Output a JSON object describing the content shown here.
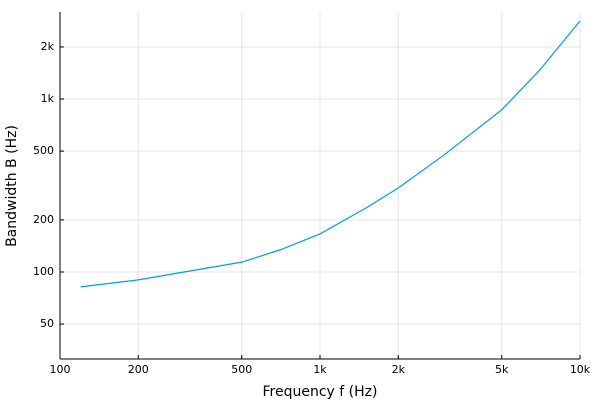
{
  "chart_data": {
    "type": "line",
    "xlabel": "Frequency f (Hz)",
    "ylabel": "Bandwidth B (Hz)",
    "x": [
      120,
      200,
      300,
      500,
      700,
      1000,
      1500,
      2000,
      3000,
      5000,
      7000,
      10000
    ],
    "series": [
      {
        "color": "#009af9",
        "values": [
          82,
          90,
          100,
          114,
          134,
          166,
          234,
          306,
          475,
          866,
          1470,
          2826
        ]
      }
    ],
    "xlim": [
      100,
      10000
    ],
    "ylim": [
      31.4,
      3185
    ],
    "xlog": true,
    "ylog": true,
    "grid": true,
    "xticks": [
      100,
      200,
      500,
      {
        "value": 1000,
        "label": "1k"
      },
      {
        "value": 2000,
        "label": "2k"
      },
      {
        "value": 5000,
        "label": "5k"
      },
      {
        "value": 10000,
        "label": "10k"
      }
    ],
    "yticks": [
      50,
      100,
      200,
      500,
      {
        "value": 1000,
        "label": "1k"
      },
      {
        "value": 2000,
        "label": "2k"
      }
    ]
  }
}
